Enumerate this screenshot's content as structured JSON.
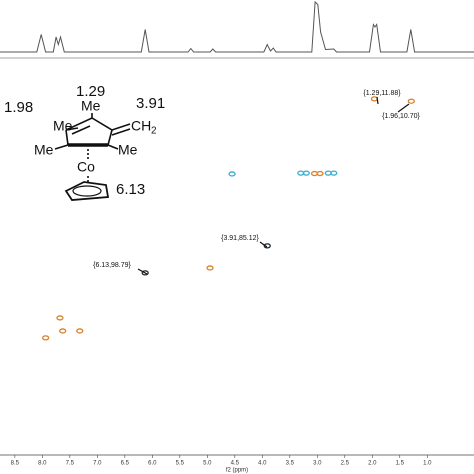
{
  "chart_data": [
    {
      "type": "line",
      "x": [
        8.77,
        8.1,
        8.02,
        7.94,
        7.8,
        7.75,
        7.71,
        7.67,
        7.6,
        6.2,
        6.13,
        6.06,
        5.35,
        5.3,
        5.25,
        4.95,
        4.9,
        4.85,
        3.97,
        3.91,
        3.85,
        3.8,
        3.75,
        3.1,
        3.04,
        2.99,
        2.94,
        2.85,
        2.7,
        2.65,
        2.05,
        1.98,
        1.95,
        1.92,
        1.85,
        1.37,
        1.3,
        1.23,
        0.15
      ],
      "values": [
        0,
        0,
        0.35,
        0,
        0,
        0.3,
        0.15,
        0.3,
        0,
        0,
        0.45,
        0,
        0,
        0.07,
        0,
        0,
        0.06,
        0,
        0,
        0.15,
        0.02,
        0.08,
        0,
        0,
        1.0,
        0.95,
        0.4,
        0.05,
        0.06,
        0,
        0,
        0.55,
        0.5,
        0.55,
        0,
        0,
        0.45,
        0,
        0
      ],
      "color": "#555555",
      "xlim": [
        8.77,
        0.15
      ]
    },
    {
      "type": "scatter",
      "xlabel": "f2 (ppm)",
      "xlim": [
        8.77,
        0.15
      ],
      "ylim": [
        -10,
        191
      ],
      "xticks": [
        {
          "value": 8.5,
          "label": "8.5"
        },
        {
          "value": 8.0,
          "label": "8.0"
        },
        {
          "value": 7.5,
          "label": "7.5"
        },
        {
          "value": 7.0,
          "label": "7.0"
        },
        {
          "value": 6.5,
          "label": "6.5"
        },
        {
          "value": 6.0,
          "label": "6.0"
        },
        {
          "value": 5.5,
          "label": "5.5"
        },
        {
          "value": 5.0,
          "label": "5.0"
        },
        {
          "value": 4.5,
          "label": "4.5"
        },
        {
          "value": 4.0,
          "label": "4.0"
        },
        {
          "value": 3.5,
          "label": "3.5"
        },
        {
          "value": 3.0,
          "label": "3.0"
        },
        {
          "value": 2.5,
          "label": "2.5"
        },
        {
          "value": 2.0,
          "label": "2.0"
        },
        {
          "value": 1.5,
          "label": "1.5"
        },
        {
          "value": 1.0,
          "label": "1.0"
        }
      ],
      "series": [
        {
          "color": "#d9822b",
          "x": [
            1.96,
            1.29,
            3.05,
            2.95,
            4.95,
            7.68,
            7.63,
            7.32,
            7.94
          ],
          "y": [
            10.7,
            11.88,
            48.5,
            48.5,
            96.3,
            121.6,
            128.2,
            128.2,
            131.7
          ]
        },
        {
          "color": "#3aaecb",
          "x": [
            4.55,
            3.3,
            3.2,
            2.8,
            2.7
          ],
          "y": [
            48.7,
            48.3,
            48.3,
            48.3,
            48.3
          ]
        },
        {
          "color": "#1d2a33",
          "x": [
            3.91,
            6.13
          ],
          "y": [
            85.12,
            98.79
          ]
        }
      ],
      "annotations": [
        "{1.29,11.88}",
        "{1.96,10.70}",
        "{3.91,85.12}",
        "{6.13,98.79}"
      ]
    }
  ],
  "structure": {
    "labels": [
      "1.98",
      "1.29",
      "3.91",
      "6.13",
      "Me",
      "Me",
      "Me",
      "Me",
      "CH",
      "2",
      "Co"
    ]
  }
}
